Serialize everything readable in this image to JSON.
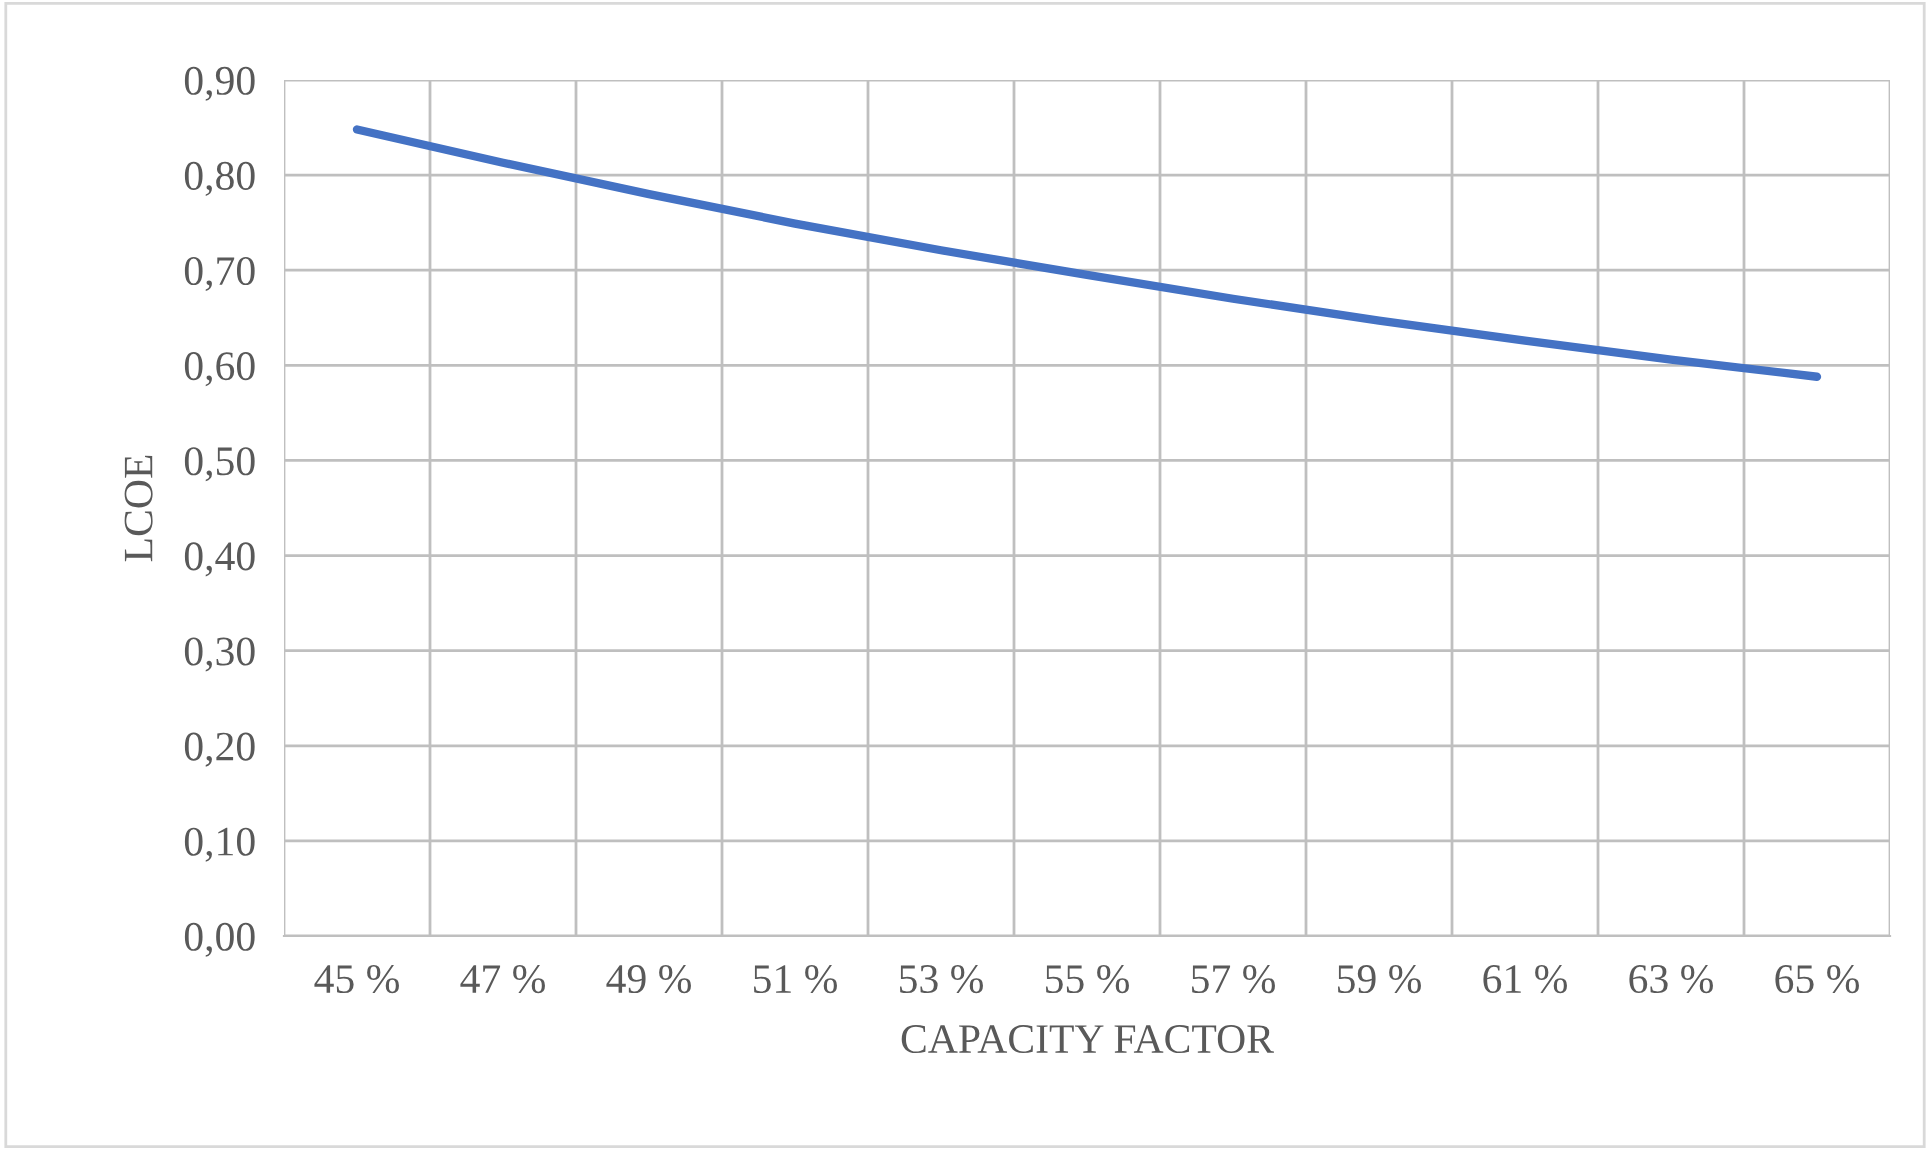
{
  "chart_data": {
    "type": "line",
    "xlabel": "CAPACITY FACTOR",
    "ylabel": "LCOE",
    "categories": [
      "45 %",
      "47 %",
      "49 %",
      "51 %",
      "53 %",
      "55 %",
      "57 %",
      "59 %",
      "61 %",
      "63 %",
      "65 %"
    ],
    "series": [
      {
        "color": "#4472c4",
        "values": [
          0.848,
          0.813,
          0.78,
          0.749,
          0.721,
          0.695,
          0.67,
          0.647,
          0.626,
          0.606,
          0.588
        ]
      }
    ],
    "ylim": [
      0,
      0.9
    ],
    "yticks": [
      {
        "value": 0,
        "label": "0,00"
      },
      {
        "value": 0.1,
        "label": "0,10"
      },
      {
        "value": 0.2,
        "label": "0,20"
      },
      {
        "value": 0.3,
        "label": "0,30"
      },
      {
        "value": 0.4,
        "label": "0,40"
      },
      {
        "value": 0.5,
        "label": "0,50"
      },
      {
        "value": 0.6,
        "label": "0,60"
      },
      {
        "value": 0.7,
        "label": "0,70"
      },
      {
        "value": 0.8,
        "label": "0,80"
      },
      {
        "value": 0.9,
        "label": "0,90"
      }
    ],
    "grid": true,
    "legend": false,
    "marker": "none",
    "line_style": "solid"
  }
}
